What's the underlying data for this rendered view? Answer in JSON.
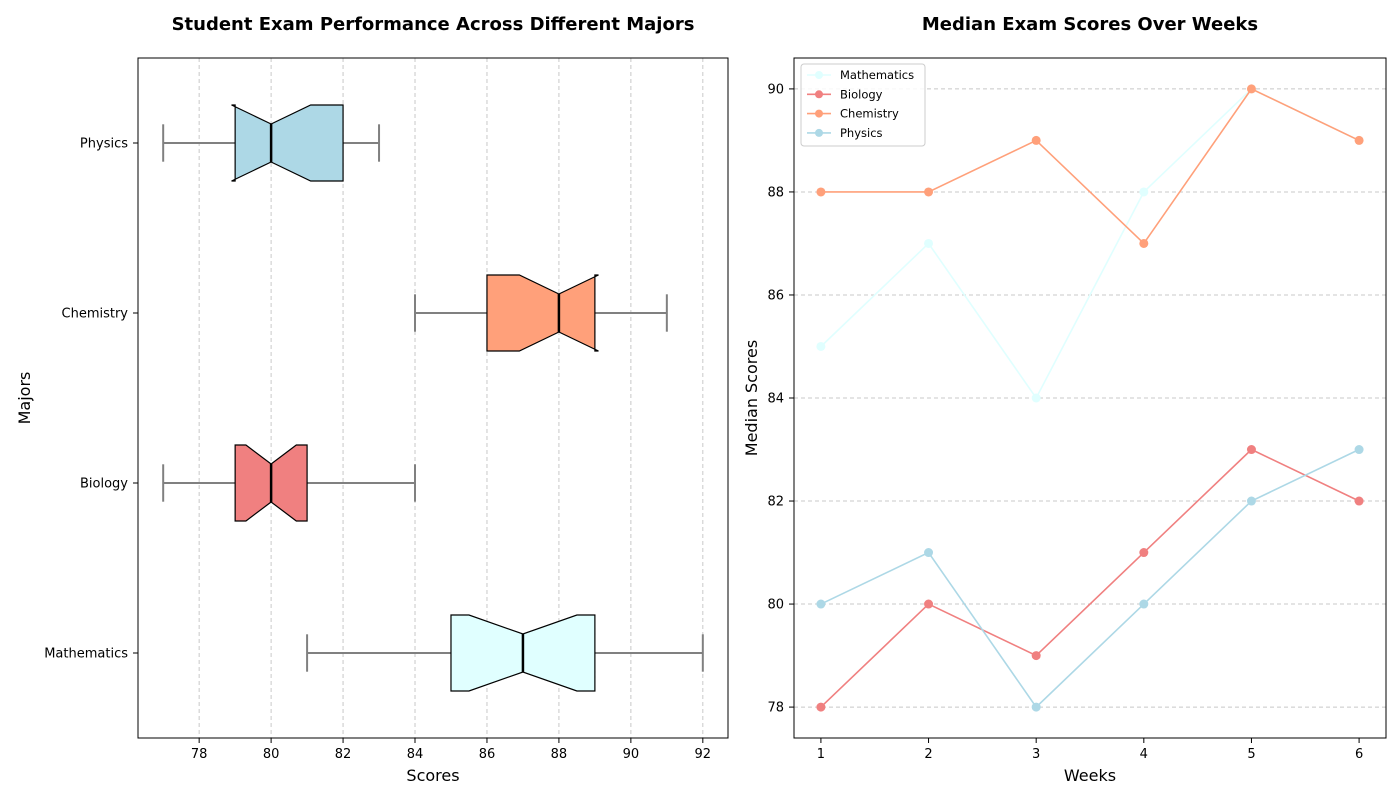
{
  "chart_data": [
    {
      "type": "boxplot",
      "orientation": "horizontal",
      "notched": true,
      "title": "Student Exam Performance Across Different Majors",
      "xlabel": "Scores",
      "ylabel": "Majors",
      "xlim": [
        76.3,
        92.7
      ],
      "xticks": [
        78,
        80,
        82,
        84,
        86,
        88,
        90,
        92
      ],
      "grid": "x",
      "categories": [
        "Mathematics",
        "Biology",
        "Chemistry",
        "Physics"
      ],
      "boxes": [
        {
          "name": "Mathematics",
          "whisker_low": 81,
          "q1": 85,
          "median": 87,
          "q3": 89,
          "whisker_high": 92,
          "notch_low": 85.5,
          "notch_high": 88.5,
          "color": "#e0ffff"
        },
        {
          "name": "Biology",
          "whisker_low": 77,
          "q1": 79,
          "median": 80,
          "q3": 81,
          "whisker_high": 84,
          "notch_low": 79.3,
          "notch_high": 80.7,
          "color": "#f08080"
        },
        {
          "name": "Chemistry",
          "whisker_low": 84,
          "q1": 86,
          "median": 88,
          "q3": 89,
          "whisker_high": 91,
          "notch_low": 86.9,
          "notch_high": 89.1,
          "color": "#ffa07a"
        },
        {
          "name": "Physics",
          "whisker_low": 77,
          "q1": 79,
          "median": 80,
          "q3": 82,
          "whisker_high": 83,
          "notch_low": 78.9,
          "notch_high": 81.1,
          "color": "#add8e6"
        }
      ]
    },
    {
      "type": "line",
      "title": "Median Exam Scores Over Weeks",
      "xlabel": "Weeks",
      "ylabel": "Median Scores",
      "x": [
        1,
        2,
        3,
        4,
        5,
        6
      ],
      "xlim": [
        0.75,
        6.25
      ],
      "ylim": [
        77.4,
        90.6
      ],
      "yticks": [
        78,
        80,
        82,
        84,
        86,
        88,
        90
      ],
      "grid": "y",
      "legend": "top-left",
      "series": [
        {
          "name": "Mathematics",
          "values": [
            85,
            87,
            84,
            88,
            90,
            89
          ],
          "color": "#e0ffff"
        },
        {
          "name": "Biology",
          "values": [
            78,
            80,
            79,
            81,
            83,
            82
          ],
          "color": "#f08080"
        },
        {
          "name": "Chemistry",
          "values": [
            88,
            88,
            89,
            87,
            90,
            89
          ],
          "color": "#ffa07a"
        },
        {
          "name": "Physics",
          "values": [
            80,
            81,
            78,
            80,
            82,
            83
          ],
          "color": "#add8e6"
        }
      ]
    }
  ]
}
